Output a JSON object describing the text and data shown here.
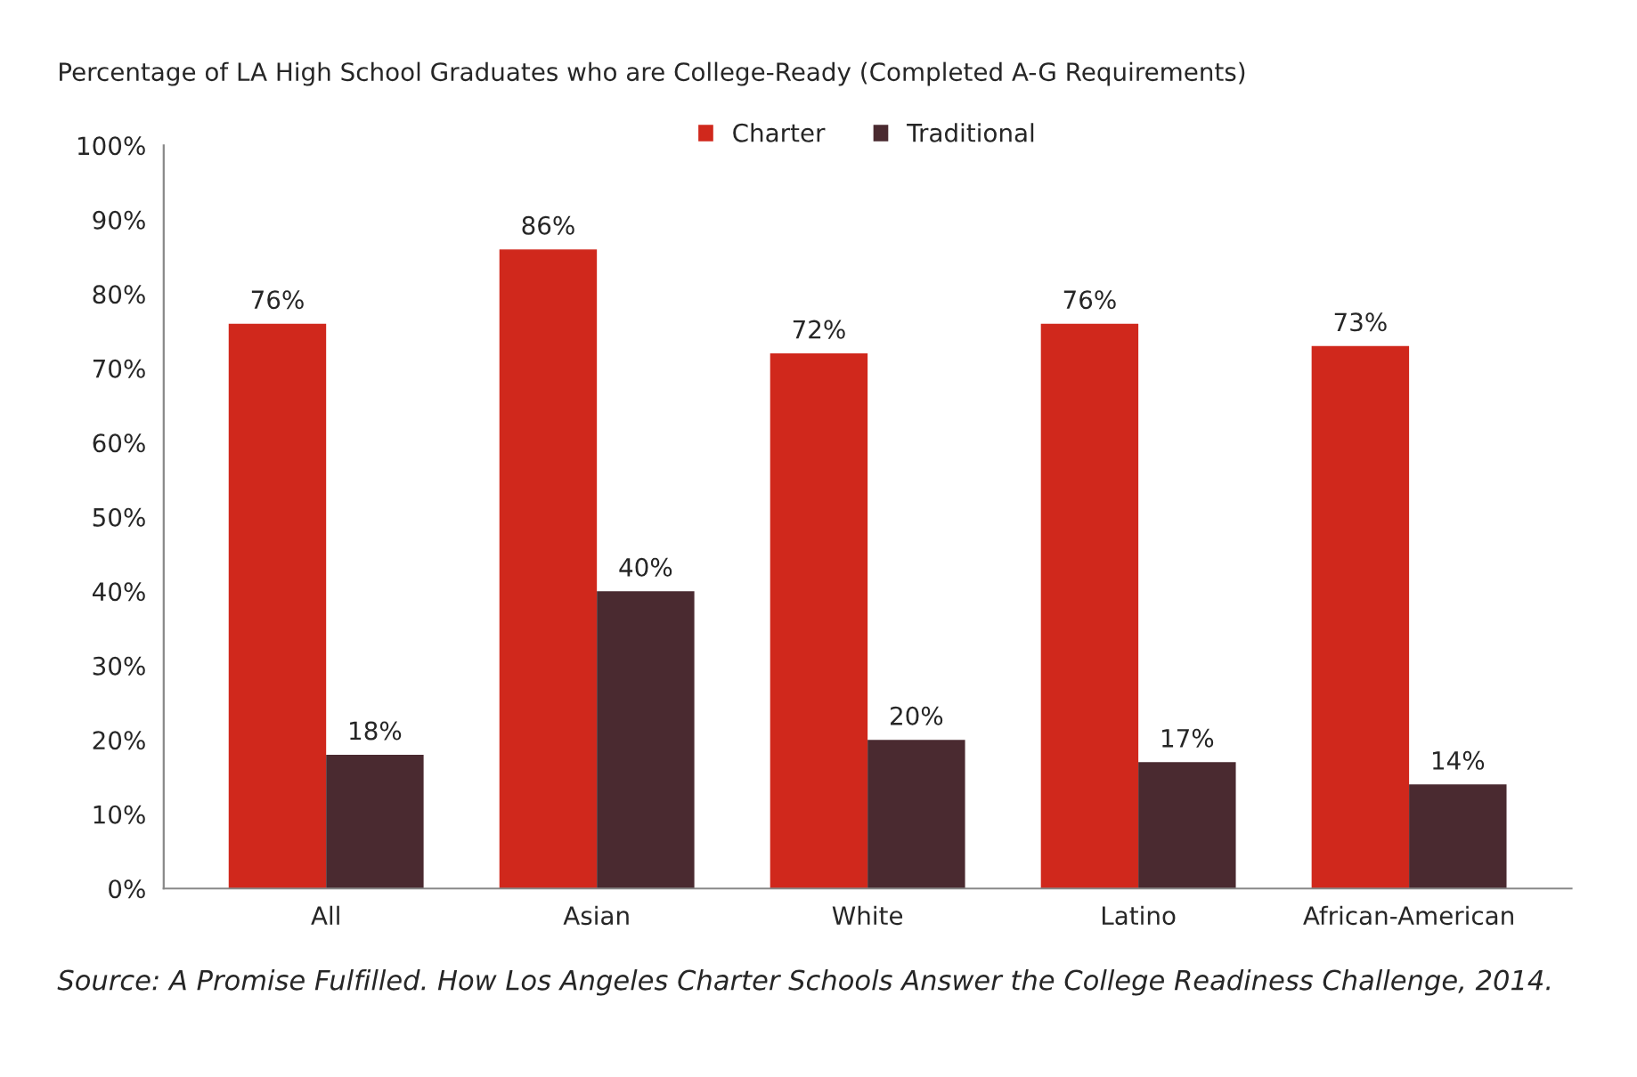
{
  "chart_data": {
    "type": "bar",
    "title": "Percentage of LA High School Graduates who are College-Ready (Completed A-G Requirements)",
    "categories": [
      "All",
      "Asian",
      "White",
      "Latino",
      "African-American"
    ],
    "series": [
      {
        "name": "Charter",
        "color": "#d0281c",
        "values": [
          76,
          86,
          72,
          76,
          73
        ],
        "value_labels": [
          "76%",
          "86%",
          "72%",
          "76%",
          "73%"
        ]
      },
      {
        "name": "Traditional",
        "color": "#4a2a30",
        "values": [
          18,
          40,
          20,
          17,
          14
        ],
        "value_labels": [
          "18%",
          "40%",
          "20%",
          "17%",
          "14%"
        ]
      }
    ],
    "ylim": [
      0,
      100
    ],
    "yticks": [
      {
        "value": 0,
        "label": "0%"
      },
      {
        "value": 10,
        "label": "10%"
      },
      {
        "value": 20,
        "label": "20%"
      },
      {
        "value": 30,
        "label": "30%"
      },
      {
        "value": 40,
        "label": "40%"
      },
      {
        "value": 50,
        "label": "50%"
      },
      {
        "value": 60,
        "label": "60%"
      },
      {
        "value": 70,
        "label": "70%"
      },
      {
        "value": 80,
        "label": "80%"
      },
      {
        "value": 90,
        "label": "90%"
      },
      {
        "value": 100,
        "label": "100%"
      }
    ],
    "legend": "top",
    "grid": false,
    "annotations": [
      "Source: A Promise Fulfilled. How Los Angeles Charter Schools Answer the College Readiness Challenge, 2014."
    ]
  }
}
